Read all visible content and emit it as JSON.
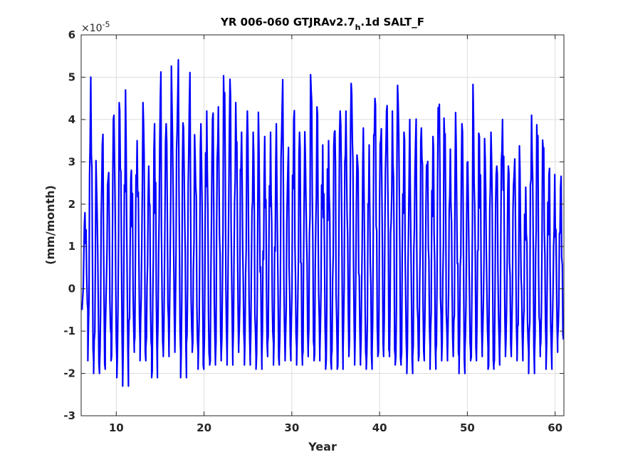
{
  "chart_data": {
    "type": "line",
    "title_parts": {
      "main": "YR 006-060 GTJRAv2.7",
      "subscript": "h",
      "suffix": ".1d SALT_F"
    },
    "xlabel": "Year",
    "ylabel": "(mm/month)",
    "exponent_label": {
      "base": "×10",
      "power": "-5"
    },
    "xlim": [
      6,
      61
    ],
    "ylim": [
      -3,
      6
    ],
    "xticks": [
      10,
      20,
      30,
      40,
      50,
      60
    ],
    "yticks": [
      -3,
      -2,
      -1,
      0,
      1,
      2,
      3,
      4,
      5,
      6
    ],
    "grid": true,
    "line_color": "#0000ff",
    "series": [
      {
        "values_description_excluded": true,
        "x_start": 6.1,
        "x_step": 0.1,
        "peaks": [
          1.8,
          5.0,
          2.4,
          3.4,
          2.6,
          4.1,
          4.2,
          4.7,
          2.8,
          3.5,
          4.4,
          2.9,
          3.9,
          4.5,
          3.9,
          4.4,
          4.5,
          3.8,
          4.3,
          3.1,
          3.9,
          4.2,
          4.0,
          4.3,
          4.3,
          4.95,
          4.4,
          3.7,
          4.2,
          3.7,
          3.4,
          3.6,
          3.7,
          3.9,
          4.3,
          2.9,
          4.0,
          3.7,
          3.1,
          4.7,
          4.3,
          3.4,
          3.5,
          3.7,
          4.2,
          4.2,
          4.6,
          3.0,
          3.8,
          3.4,
          4.5,
          3.5,
          4.2,
          4.2,
          4.4,
          3.7,
          4.0,
          3.5,
          3.8,
          2.9,
          3.6,
          4.2,
          3.6,
          3.3,
          3.4,
          3.9,
          3.0,
          4.0,
          3.6,
          3.1,
          3.7,
          2.9,
          4.0,
          2.9,
          2.7,
          2.8,
          2.4,
          4.1,
          3.2,
          3.3,
          2.7,
          2.7,
          2.4
        ],
        "troughs": [
          -0.5,
          -1.7,
          -2.0,
          -1.9,
          -1.1,
          -1.7,
          -2.1,
          -2.3,
          -1.5,
          -1.3,
          -1.7,
          -1.4,
          -2.1,
          -1.5,
          -1.6,
          -1.4,
          -1.5,
          -2.1,
          -1.3,
          -1.5,
          -1.9,
          -1.7,
          -1.8,
          -1.7,
          -1.6,
          -1.8,
          -1.5,
          -1.4,
          -1.8,
          -1.6,
          -1.9,
          -1.6,
          -1.3,
          -1.8,
          -1.6,
          -1.7,
          -1.4,
          -1.8,
          -1.6,
          -1.4,
          -1.7,
          -1.5,
          -1.9,
          -1.6,
          -1.9,
          -1.5,
          -1.6,
          -1.8,
          -1.7,
          -1.9,
          -1.5,
          -1.6,
          -1.5,
          -1.6,
          -1.8,
          -1.7,
          -2.0,
          -1.6,
          -1.7,
          -1.4,
          -1.9,
          -1.5,
          -1.7,
          -1.6,
          -1.6,
          -2.0,
          -1.5,
          -1.7,
          -1.6,
          -1.4,
          -1.9,
          -1.8,
          -1.5,
          -1.6,
          -1.5,
          -1.7,
          -1.5,
          -2.0,
          -1.6,
          -1.4,
          -1.9,
          -1.5,
          -1.2
        ]
      }
    ]
  }
}
